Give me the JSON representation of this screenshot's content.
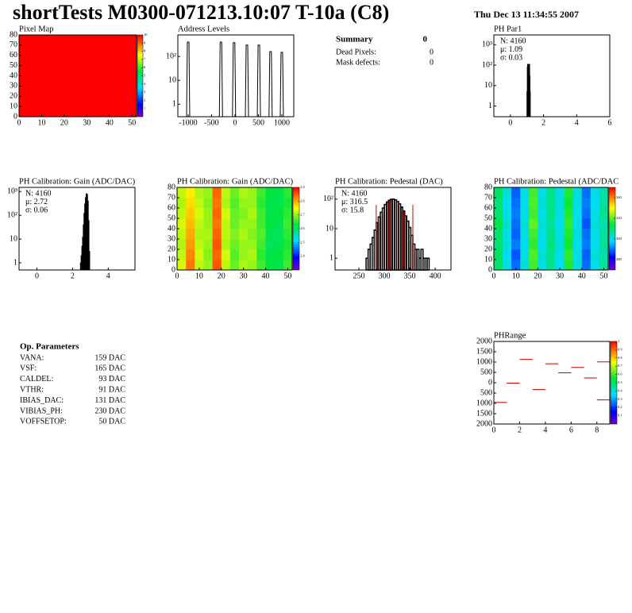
{
  "header": {
    "title": "shortTests M0300-071213.10:07 T-10a (C8)",
    "date": "Thu Dec 13 11:34:55 2007"
  },
  "summary": {
    "title": "Summary",
    "total": 0,
    "rows": [
      [
        "Dead Pixels:",
        0
      ],
      [
        "Mask defects:",
        0
      ]
    ]
  },
  "op_parameters": {
    "title": "Op. Parameters",
    "rows": [
      [
        "VANA:",
        "159 DAC"
      ],
      [
        "VSF:",
        "165 DAC"
      ],
      [
        "CALDEL:",
        "93 DAC"
      ],
      [
        "VTHR:",
        "91 DAC"
      ],
      [
        "IBIAS_DAC:",
        "131 DAC"
      ],
      [
        "VIBIAS_PH:",
        "230 DAC"
      ],
      [
        "VOFFSETOP:",
        "50 DAC"
      ]
    ]
  },
  "chart_data": [
    {
      "type": "heatmap",
      "title": "Pixel Map",
      "xlim": [
        0,
        52
      ],
      "ylim": [
        0,
        80
      ],
      "xticks": [
        0,
        10,
        20,
        30,
        40,
        50
      ],
      "yticks": [
        0,
        10,
        20,
        30,
        40,
        50,
        60,
        70,
        80
      ],
      "z": [
        [
          10
        ]
      ],
      "zlim": [
        0,
        10
      ],
      "zticks": [
        1,
        2,
        3,
        4,
        5,
        6,
        7,
        8,
        9,
        10
      ]
    },
    {
      "type": "spikes",
      "title": "Address Levels",
      "log_y": true,
      "xlim": [
        -1220,
        1255
      ],
      "ylim": [
        0.3,
        800
      ],
      "xticks": [
        -1000,
        -500,
        0,
        500,
        1000
      ],
      "yticks": [
        1,
        10,
        {
          "value": 100,
          "label": "10²"
        }
      ],
      "x": [
        -1000,
        -300,
        -20,
        255,
        510,
        760,
        1000
      ],
      "values": [
        400,
        400,
        380,
        300,
        300,
        160,
        150
      ],
      "color": "#000000"
    },
    {
      "type": "histogram",
      "title": "PH Par1",
      "log_y": true,
      "xlim": [
        -1,
        6
      ],
      "ylim": [
        0.3,
        3000
      ],
      "xticks": [
        0,
        2,
        4,
        6
      ],
      "yticks": [
        1,
        10,
        {
          "value": 100,
          "label": "10²"
        },
        {
          "value": 1000,
          "label": "10³"
        }
      ],
      "bins": [
        1.0,
        1.02,
        1.04,
        1.06,
        1.08,
        1.1,
        1.12,
        1.14,
        1.16,
        1.18,
        1.2
      ],
      "counts": [
        5,
        80,
        450,
        700,
        750,
        650,
        400,
        150,
        30,
        5
      ],
      "stats": [
        "N: 4160",
        "μ: 1.09",
        "σ: 0.03"
      ],
      "stats_colors": [
        "#000000",
        "#000000",
        "#000000"
      ]
    },
    {
      "type": "histogram",
      "title": "PH Calibration: Gain (ADC/DAC)",
      "log_y": true,
      "xlim": [
        -1,
        5.5
      ],
      "ylim": [
        0.5,
        1500
      ],
      "xticks": [
        0,
        2,
        4
      ],
      "yticks": [
        1,
        10,
        {
          "value": 100,
          "label": "10²"
        },
        {
          "value": 1000,
          "label": "10³"
        }
      ],
      "bins": [
        2.44,
        2.48,
        2.52,
        2.56,
        2.6,
        2.64,
        2.68,
        2.72,
        2.76,
        2.8,
        2.84,
        2.88,
        2.92,
        2.96
      ],
      "counts": [
        1,
        2,
        5,
        12,
        40,
        120,
        300,
        550,
        800,
        750,
        400,
        60,
        3
      ],
      "stats": [
        "N: 4160",
        "μ: 2.72",
        "σ: 0.06"
      ],
      "stats_colors": [
        "#000000",
        "#000000",
        "#000000"
      ]
    },
    {
      "type": "heatmap",
      "title": "PH Calibration: Gain (ADC/DAC)",
      "xlim": [
        0,
        52
      ],
      "ylim": [
        0,
        80
      ],
      "xticks": [
        0,
        10,
        20,
        30,
        40,
        50
      ],
      "yticks": [
        0,
        10,
        20,
        30,
        40,
        50,
        60,
        70,
        80
      ],
      "zlim": [
        2.3,
        2.9
      ],
      "zticks": [
        2.4,
        2.5,
        2.6,
        2.7,
        2.8,
        2.9
      ],
      "z": [
        [
          2.73,
          2.83,
          2.72,
          2.7,
          2.85,
          2.72,
          2.68,
          2.71,
          2.7,
          2.66,
          2.63,
          2.62,
          2.66
        ],
        [
          2.72,
          2.82,
          2.73,
          2.69,
          2.84,
          2.73,
          2.67,
          2.7,
          2.71,
          2.65,
          2.62,
          2.63,
          2.65
        ],
        [
          2.71,
          2.81,
          2.72,
          2.7,
          2.85,
          2.71,
          2.68,
          2.7,
          2.7,
          2.66,
          2.61,
          2.62,
          2.64
        ],
        [
          2.72,
          2.8,
          2.71,
          2.71,
          2.84,
          2.72,
          2.69,
          2.71,
          2.69,
          2.67,
          2.62,
          2.61,
          2.65
        ],
        [
          2.73,
          2.79,
          2.72,
          2.7,
          2.83,
          2.72,
          2.68,
          2.7,
          2.7,
          2.66,
          2.63,
          2.62,
          2.66
        ],
        [
          2.72,
          2.78,
          2.73,
          2.7,
          2.84,
          2.73,
          2.68,
          2.69,
          2.71,
          2.66,
          2.62,
          2.63,
          2.65
        ],
        [
          2.71,
          2.77,
          2.72,
          2.69,
          2.83,
          2.71,
          2.67,
          2.7,
          2.7,
          2.65,
          2.62,
          2.62,
          2.64
        ],
        [
          2.72,
          2.76,
          2.71,
          2.7,
          2.84,
          2.72,
          2.68,
          2.71,
          2.7,
          2.66,
          2.63,
          2.62,
          2.65
        ]
      ]
    },
    {
      "type": "histogram",
      "title": "PH Calibration: Pedestal (DAC)",
      "log_y": true,
      "xlim": [
        203,
        431
      ],
      "ylim": [
        0.4,
        250
      ],
      "xticks": [
        250,
        300,
        350,
        400
      ],
      "yticks": [
        1,
        10,
        {
          "value": 100,
          "label": "10²"
        }
      ],
      "bins": [
        264,
        268,
        272,
        276,
        280,
        284,
        288,
        292,
        296,
        300,
        304,
        308,
        312,
        316,
        320,
        324,
        328,
        332,
        336,
        340,
        344,
        348,
        352,
        356,
        360,
        364,
        368,
        372,
        376,
        380,
        384,
        388
      ],
      "counts": [
        1,
        2,
        3,
        5,
        9,
        16,
        25,
        36,
        50,
        66,
        80,
        92,
        99,
        100,
        94,
        83,
        69,
        54,
        40,
        27,
        18,
        11,
        6,
        3,
        2,
        2,
        1,
        2,
        1,
        1,
        1
      ],
      "fit_range": [
        284,
        356
      ],
      "fit_color": "#cc0000",
      "stats": [
        "N: 4160",
        "μ: 316.5",
        "σ: 15.8"
      ],
      "stats_colors": [
        "#000000",
        "#cc0000",
        "#cc0000"
      ]
    },
    {
      "type": "heatmap",
      "title": "PH Calibration: Pedestal (ADC/DAC",
      "xlim": [
        0,
        52
      ],
      "ylim": [
        0,
        80
      ],
      "xticks": [
        0,
        10,
        20,
        30,
        40,
        50
      ],
      "yticks": [
        0,
        10,
        20,
        30,
        40,
        50,
        60,
        70,
        80
      ],
      "zlim": [
        270,
        350
      ],
      "zticks": [
        280,
        300,
        320,
        340
      ],
      "z": [
        [
          310,
          300,
          290,
          301,
          318,
          300,
          308,
          299,
          316,
          301,
          290,
          300,
          306
        ],
        [
          311,
          299,
          288,
          300,
          319,
          301,
          307,
          300,
          317,
          300,
          289,
          301,
          305
        ],
        [
          309,
          301,
          291,
          299,
          317,
          299,
          309,
          301,
          315,
          299,
          291,
          299,
          307
        ],
        [
          310,
          300,
          289,
          300,
          318,
          300,
          308,
          300,
          316,
          301,
          290,
          300,
          306
        ],
        [
          312,
          302,
          290,
          301,
          320,
          301,
          306,
          299,
          317,
          300,
          288,
          301,
          305
        ],
        [
          310,
          300,
          291,
          300,
          318,
          300,
          308,
          300,
          316,
          299,
          290,
          300,
          307
        ],
        [
          309,
          299,
          290,
          299,
          319,
          301,
          307,
          301,
          315,
          300,
          291,
          299,
          306
        ],
        [
          311,
          301,
          289,
          300,
          318,
          300,
          308,
          300,
          316,
          301,
          290,
          300,
          305
        ]
      ]
    },
    {
      "type": "segments",
      "title": "PHRange",
      "xlim": [
        0,
        9
      ],
      "ylim": [
        -2000,
        2000
      ],
      "xticks": [
        0,
        2,
        4,
        6,
        8
      ],
      "yticks": [
        {
          "value": -2000,
          "label": "2000"
        },
        {
          "value": -1500,
          "label": "1500"
        },
        {
          "value": -1000,
          "label": "1000"
        },
        {
          "value": -500,
          "label": "500"
        },
        0,
        500,
        1000,
        1500,
        2000
      ],
      "x": [
        0,
        1,
        2,
        3,
        4,
        5,
        6,
        7,
        8,
        8
      ],
      "values": [
        -950,
        -20,
        1130,
        -330,
        920,
        480,
        740,
        230,
        1010,
        -830
      ],
      "color": "#cc0000",
      "zlim": [
        0,
        1
      ],
      "zticks": [
        0.1,
        0.2,
        0.3,
        0.4,
        0.5,
        0.6,
        0.7,
        0.8,
        0.9,
        1
      ]
    }
  ]
}
